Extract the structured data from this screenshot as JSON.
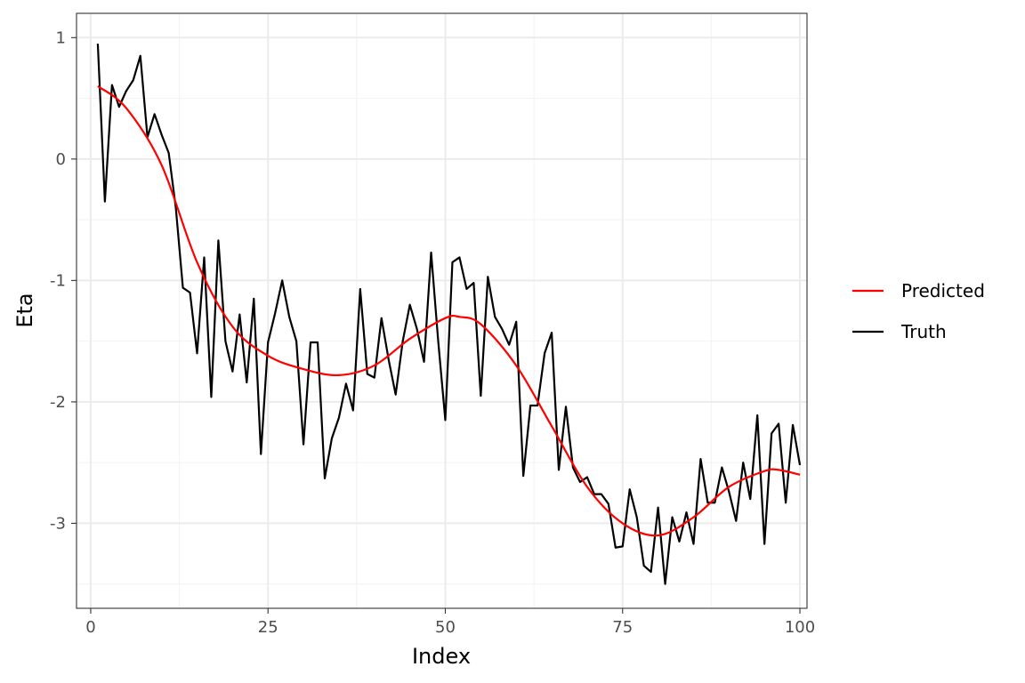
{
  "chart_data": {
    "type": "line",
    "title": "",
    "xlabel": "Index",
    "ylabel": "Eta",
    "xlim": [
      -2,
      101
    ],
    "ylim": [
      -3.7,
      1.2
    ],
    "x_ticks": [
      0,
      25,
      50,
      75,
      100
    ],
    "x_tick_labels": [
      "0",
      "25",
      "50",
      "75",
      "100"
    ],
    "y_ticks": [
      1,
      0,
      -1,
      -2,
      -3
    ],
    "y_tick_labels": [
      "1",
      "0",
      "-1",
      "-2",
      "-3"
    ],
    "grid": true,
    "legend_position": "right",
    "series": [
      {
        "name": "Predicted",
        "color": "#ff0000",
        "x": [
          1,
          5,
          10,
          15,
          20,
          25,
          30,
          35,
          40,
          45,
          50,
          52,
          55,
          60,
          65,
          70,
          75,
          80,
          85,
          90,
          95,
          97,
          100
        ],
        "y": [
          0.6,
          0.42,
          -0.05,
          -0.85,
          -1.38,
          -1.62,
          -1.73,
          -1.78,
          -1.7,
          -1.48,
          -1.31,
          -1.3,
          -1.36,
          -1.7,
          -2.2,
          -2.7,
          -3.0,
          -3.1,
          -2.95,
          -2.7,
          -2.57,
          -2.56,
          -2.6
        ]
      },
      {
        "name": "Truth",
        "color": "#000000",
        "x": [
          1,
          2,
          3,
          4,
          5,
          6,
          7,
          8,
          9,
          10,
          11,
          12,
          13,
          14,
          15,
          16,
          17,
          18,
          19,
          20,
          21,
          22,
          23,
          24,
          25,
          26,
          27,
          28,
          29,
          30,
          31,
          32,
          33,
          34,
          35,
          36,
          37,
          38,
          39,
          40,
          41,
          42,
          43,
          44,
          45,
          46,
          47,
          48,
          49,
          50,
          51,
          52,
          53,
          54,
          55,
          56,
          57,
          58,
          59,
          60,
          61,
          62,
          63,
          64,
          65,
          66,
          67,
          68,
          69,
          70,
          71,
          72,
          73,
          74,
          75,
          76,
          77,
          78,
          79,
          80,
          81,
          82,
          83,
          84,
          85,
          86,
          87,
          88,
          89,
          90,
          91,
          92,
          93,
          94,
          95,
          96,
          97,
          98,
          99,
          100
        ],
        "y": [
          0.95,
          -0.35,
          0.61,
          0.43,
          0.56,
          0.65,
          0.85,
          0.18,
          0.37,
          0.2,
          0.05,
          -0.4,
          -1.06,
          -1.1,
          -1.6,
          -0.81,
          -1.96,
          -0.67,
          -1.5,
          -1.75,
          -1.28,
          -1.84,
          -1.15,
          -2.43,
          -1.51,
          -1.27,
          -1.0,
          -1.3,
          -1.5,
          -2.35,
          -1.51,
          -1.51,
          -2.63,
          -2.3,
          -2.13,
          -1.85,
          -2.07,
          -1.07,
          -1.77,
          -1.8,
          -1.31,
          -1.65,
          -1.94,
          -1.5,
          -1.2,
          -1.4,
          -1.67,
          -0.77,
          -1.5,
          -2.15,
          -0.85,
          -0.81,
          -1.07,
          -1.02,
          -1.95,
          -0.97,
          -1.3,
          -1.4,
          -1.53,
          -1.34,
          -2.61,
          -2.03,
          -2.03,
          -1.6,
          -1.43,
          -2.56,
          -2.04,
          -2.54,
          -2.66,
          -2.62,
          -2.76,
          -2.76,
          -2.84,
          -3.2,
          -3.19,
          -2.72,
          -2.95,
          -3.35,
          -3.4,
          -2.87,
          -3.5,
          -2.95,
          -3.15,
          -2.91,
          -3.17,
          -2.47,
          -2.83,
          -2.83,
          -2.54,
          -2.74,
          -2.98,
          -2.5,
          -2.8,
          -2.11,
          -3.17,
          -2.26,
          -2.18,
          -2.83,
          -2.19,
          -2.52
        ]
      }
    ]
  }
}
